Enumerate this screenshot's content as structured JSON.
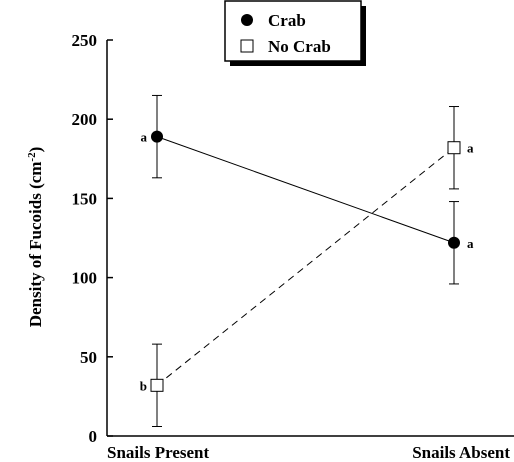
{
  "chart_data": {
    "type": "line",
    "title": "",
    "xlabel": "",
    "ylabel": "Density of Fucoids (cm",
    "ylabel_superscript": "-2",
    "ylabel_suffix": ")",
    "categories": [
      "Snails Present",
      "Snails Absent"
    ],
    "ylim": [
      0,
      250
    ],
    "yticks": [
      "0",
      "50",
      "100",
      "150",
      "200",
      "250"
    ],
    "legend_position": "top-center",
    "grid": false,
    "series": [
      {
        "name": "Crab",
        "marker": "filled-circle",
        "line_style": "solid",
        "values": [
          189,
          122
        ],
        "error": [
          26,
          26
        ],
        "significance": [
          "a",
          "a"
        ]
      },
      {
        "name": "No Crab",
        "marker": "open-square",
        "line_style": "dashed",
        "values": [
          32,
          182
        ],
        "error": [
          26,
          26
        ],
        "significance": [
          "b",
          "a"
        ]
      }
    ]
  }
}
